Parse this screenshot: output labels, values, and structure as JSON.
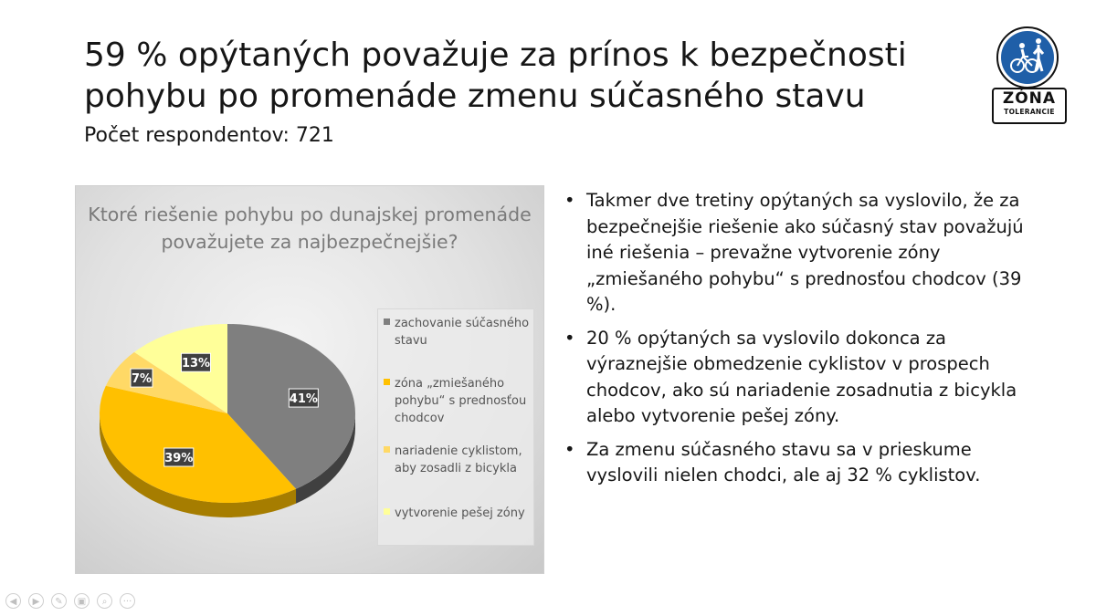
{
  "slide": {
    "title": "59 % opýtaných považuje za prínos k bezpečnosti pohybu po promenáde zmenu súčasného stavu",
    "subtitle": "Počet respondentov: 721"
  },
  "logo": {
    "word": "ZÓNA",
    "sub": "TOLERANCIE",
    "color_blue": "#1f5fa8"
  },
  "chart_data": {
    "type": "pie",
    "title": "Ktoré riešenie pohybu po dunajskej promenáde považujete za najbezpečnejšie?",
    "categories": [
      "zachovanie súčasného stavu",
      "zóna „zmiešaného pohybu“ s prednosťou chodcov",
      "nariadenie cyklistom, aby zosadli z bicykla",
      "vytvorenie pešej zóny"
    ],
    "values": [
      41,
      39,
      7,
      13
    ],
    "data_labels": [
      "41%",
      "39%",
      "7%",
      "13%"
    ],
    "colors": [
      "#7f7f7f",
      "#ffc000",
      "#ffd966",
      "#ffff99"
    ],
    "side_colors": [
      "#404040",
      "#a67d00",
      "#c9a33c",
      "#c9c96a"
    ],
    "legend_placement": "right"
  },
  "bullets": [
    "Takmer dve tretiny opýtaných sa vyslovilo, že za bezpečnejšie riešenie ako súčasný stav považujú iné riešenia – prevažne vytvorenie zóny „zmiešaného pohybu“ s prednosťou chodcov (39 %).",
    "20 % opýtaných sa vyslovilo dokonca za výraznejšie obmedzenie cyklistov v prospech chodcov, ako sú nariadenie zosadnutia z bicykla alebo vytvorenie pešej zóny.",
    "Za zmenu súčasného stavu sa v prieskume vyslovili nielen chodci, ale aj 32 % cyklistov."
  ],
  "toolbar": {
    "icons": [
      "previous-icon",
      "next-icon",
      "pen-icon",
      "slides-icon",
      "zoom-icon",
      "more-icon"
    ]
  }
}
